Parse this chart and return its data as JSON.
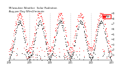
{
  "title": "Milwaukee Weather  Solar Radiation",
  "subtitle": "Avg per Day W/m2/minute",
  "background_color": "#ffffff",
  "plot_bg_color": "#ffffff",
  "grid_color": "#cccccc",
  "n_points": 365,
  "ylim": [
    0,
    9
  ],
  "yticks": [
    1,
    2,
    3,
    4,
    5,
    6,
    7,
    8,
    9
  ],
  "legend_color1": "#ff0000",
  "legend_color2": "#000000",
  "legend_label1": "High",
  "legend_label2": "Low"
}
